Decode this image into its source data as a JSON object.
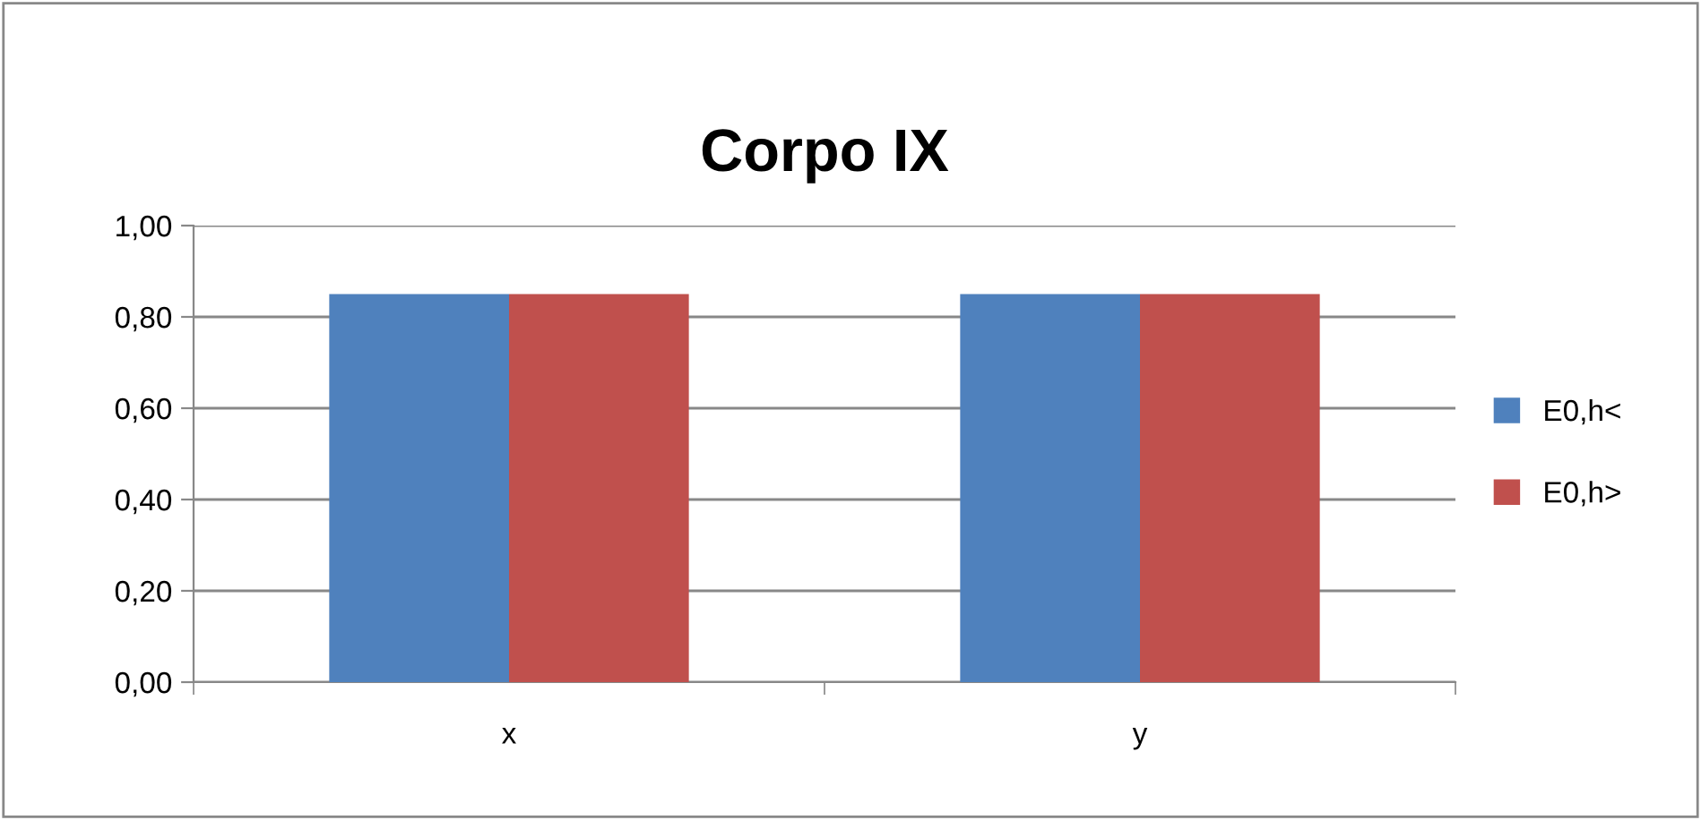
{
  "chart_data": {
    "type": "bar",
    "title": "Corpo IX",
    "categories": [
      "x",
      "y"
    ],
    "series": [
      {
        "name": "E0,h<",
        "color": "#4f81bd",
        "values": [
          0.85,
          0.85
        ]
      },
      {
        "name": "E0,h>",
        "color": "#c0504d",
        "values": [
          0.85,
          0.85
        ]
      }
    ],
    "ylim": [
      0,
      1
    ],
    "yticks": [
      {
        "value": 0,
        "label": "0,00"
      },
      {
        "value": 0.2,
        "label": "0,20"
      },
      {
        "value": 0.4,
        "label": "0,40"
      },
      {
        "value": 0.6,
        "label": "0,60"
      },
      {
        "value": 0.8,
        "label": "0,80"
      },
      {
        "value": 1,
        "label": "1,00"
      }
    ],
    "grid": "y",
    "legend": "right"
  }
}
